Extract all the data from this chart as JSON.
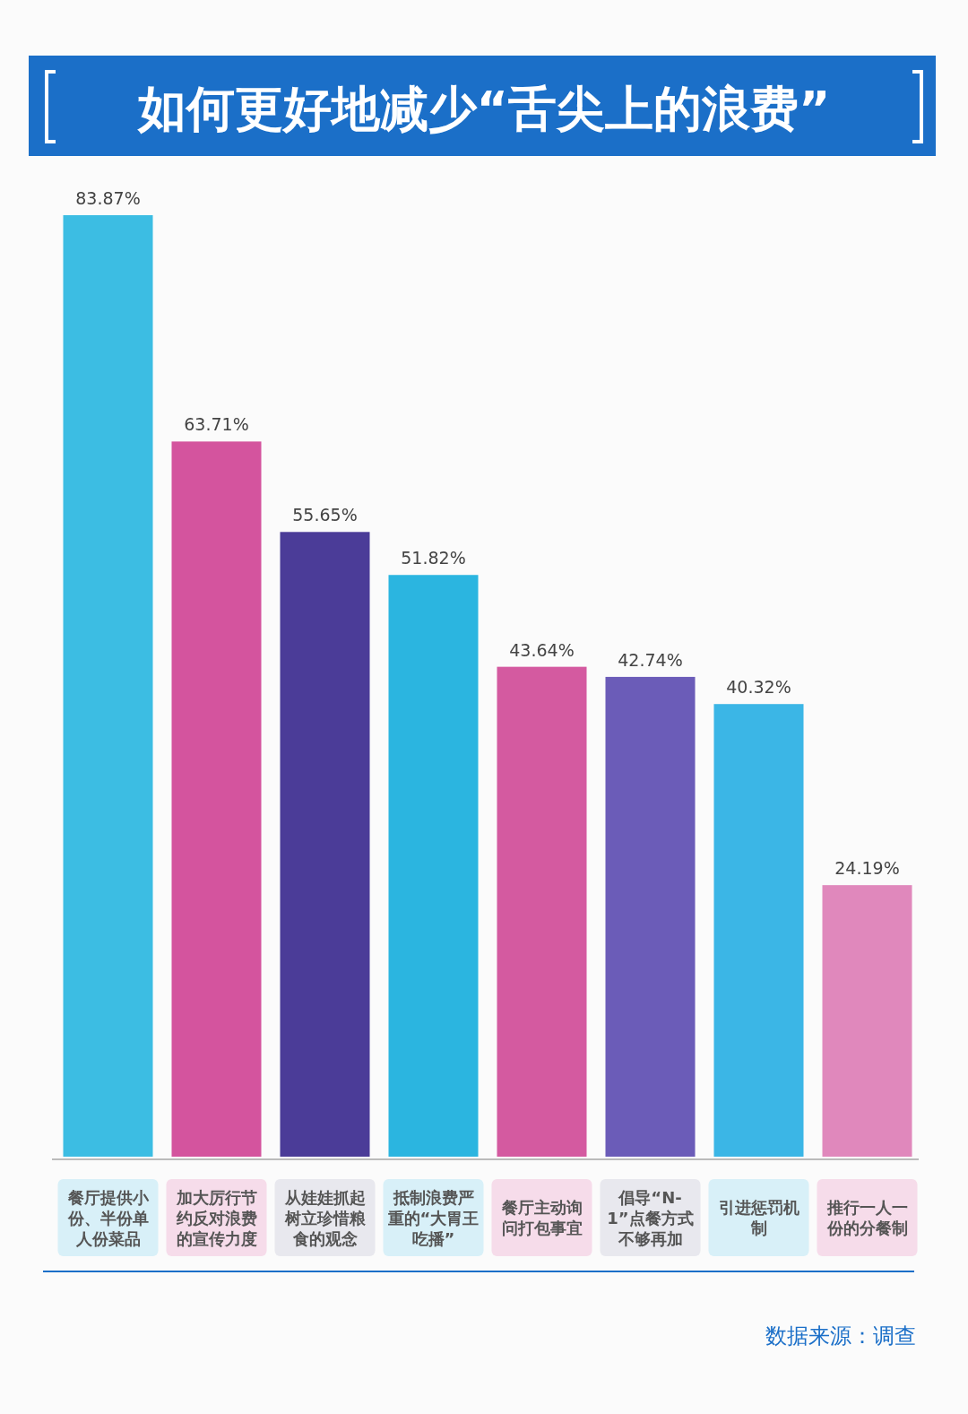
{
  "chart_data": {
    "type": "bar",
    "title": "如何更好地减少“舌尖上的浪费”",
    "categories": [
      "餐厅提供小份、半份单人份菜品",
      "加大厉行节约反对浪费的宣传力度",
      "从娃娃抓起树立珍惜粮食的观念",
      "抵制浪费严重的“大胃王吃播”",
      "餐厅主动询问打包事宜",
      "倡导“N-1”点餐方式不够再加",
      "引进惩罚机制",
      "推行一人一份的分餐制"
    ],
    "values": [
      83.87,
      63.71,
      55.65,
      51.82,
      43.64,
      42.74,
      40.32,
      24.19
    ],
    "value_labels": [
      "83.87%",
      "63.71%",
      "55.65%",
      "51.82%",
      "43.64%",
      "42.74%",
      "40.32%",
      "24.19%"
    ],
    "colors": [
      "#3cbde3",
      "#d4549e",
      "#4b3c98",
      "#2bb5e0",
      "#d45aa0",
      "#6b5cb8",
      "#3bb6e6",
      "#e088bc"
    ],
    "annotations": [
      "数据来源：调查"
    ]
  }
}
